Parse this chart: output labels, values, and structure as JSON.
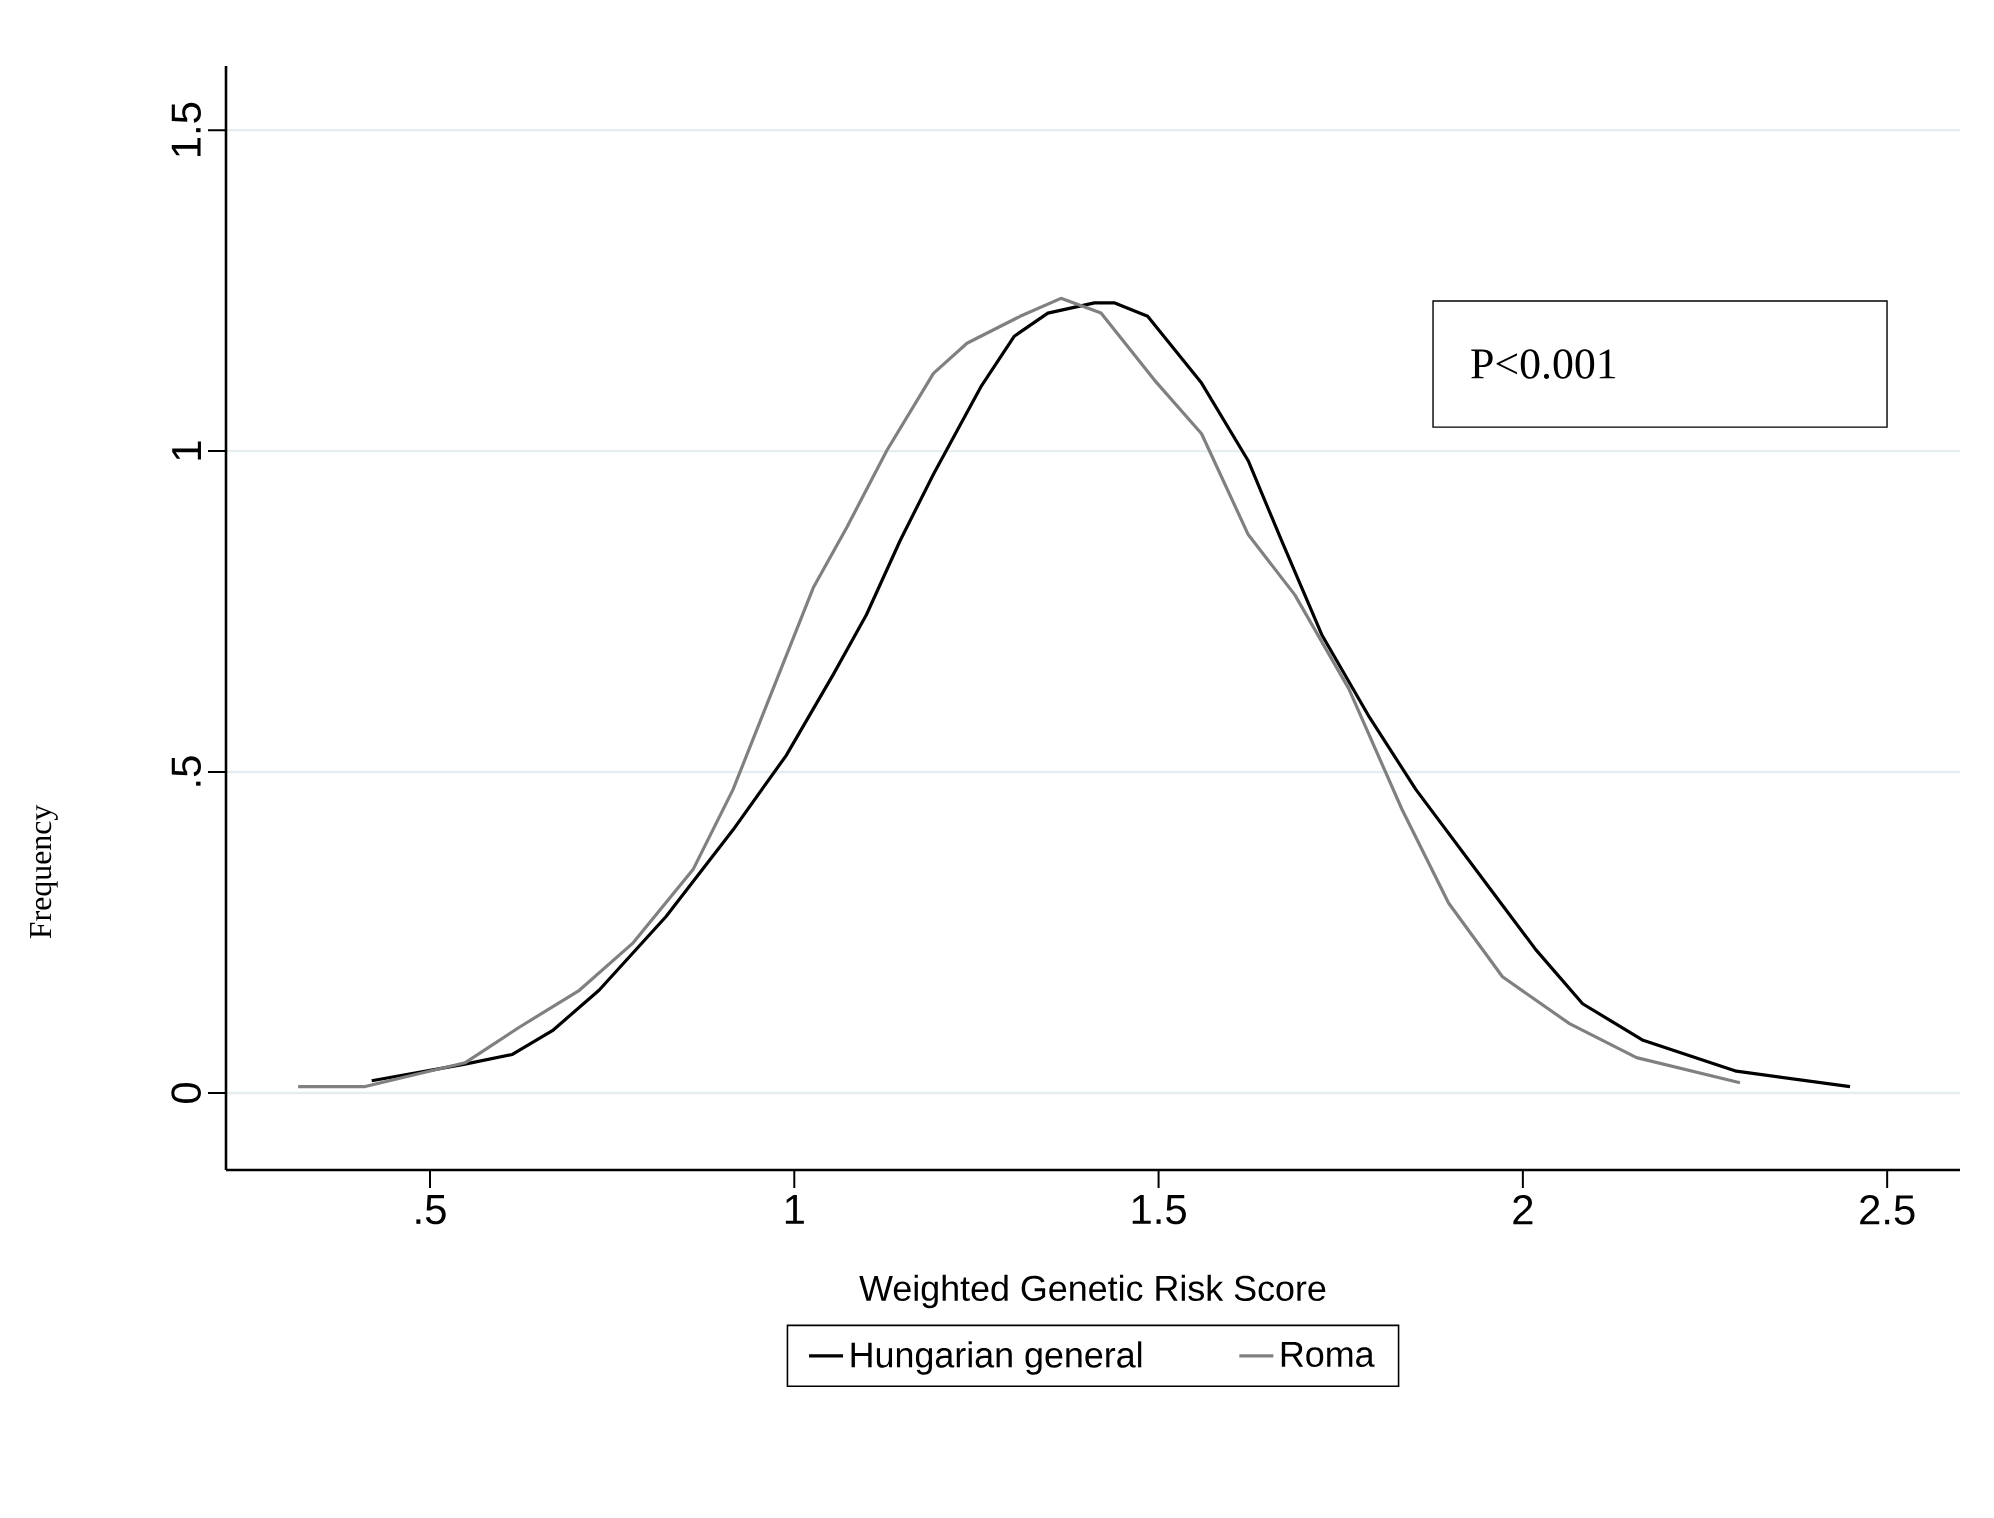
{
  "chart_data": {
    "type": "line",
    "xlabel": "Weighted Genetic Risk Score",
    "ylabel": "Frequency",
    "annotations": [
      "P<0.001"
    ],
    "xlim": [
      0.22,
      2.6
    ],
    "ylim": [
      -0.12,
      1.6
    ],
    "xticks": [
      {
        "value": 0.5,
        "label": ".5"
      },
      1,
      1.5,
      2,
      2.5
    ],
    "yticks": [
      0,
      {
        "value": 0.5,
        "label": ".5"
      },
      1,
      1.5
    ],
    "grid": "y",
    "legend": "bottom",
    "series": [
      {
        "name": "Hungarian general",
        "color": "#000000",
        "x": [
          0.42,
          0.548,
          0.613,
          0.668,
          0.732,
          0.824,
          0.916,
          0.989,
          1.053,
          1.099,
          1.145,
          1.191,
          1.256,
          1.302,
          1.348,
          1.412,
          1.439,
          1.485,
          1.559,
          1.623,
          1.669,
          1.724,
          1.788,
          1.853,
          1.963,
          2.018,
          2.082,
          2.165,
          2.293,
          2.449
        ],
        "values": [
          0.019,
          0.045,
          0.06,
          0.097,
          0.16,
          0.275,
          0.41,
          0.526,
          0.651,
          0.745,
          0.86,
          0.964,
          1.1,
          1.179,
          1.215,
          1.231,
          1.231,
          1.21,
          1.106,
          0.985,
          0.86,
          0.714,
          0.588,
          0.473,
          0.306,
          0.223,
          0.139,
          0.082,
          0.034,
          0.01
        ]
      },
      {
        "name": "Roma",
        "color": "#808080",
        "x": [
          0.319,
          0.411,
          0.548,
          0.622,
          0.705,
          0.778,
          0.861,
          0.916,
          0.971,
          1.026,
          1.072,
          1.127,
          1.191,
          1.237,
          1.31,
          1.366,
          1.421,
          1.494,
          1.559,
          1.623,
          1.687,
          1.761,
          1.834,
          1.898,
          1.972,
          2.064,
          2.156,
          2.298
        ],
        "values": [
          0.01,
          0.01,
          0.047,
          0.102,
          0.16,
          0.233,
          0.348,
          0.473,
          0.63,
          0.787,
          0.881,
          1.001,
          1.121,
          1.168,
          1.21,
          1.238,
          1.215,
          1.111,
          1.027,
          0.87,
          0.776,
          0.63,
          0.442,
          0.296,
          0.181,
          0.108,
          0.055,
          0.016
        ]
      }
    ]
  }
}
